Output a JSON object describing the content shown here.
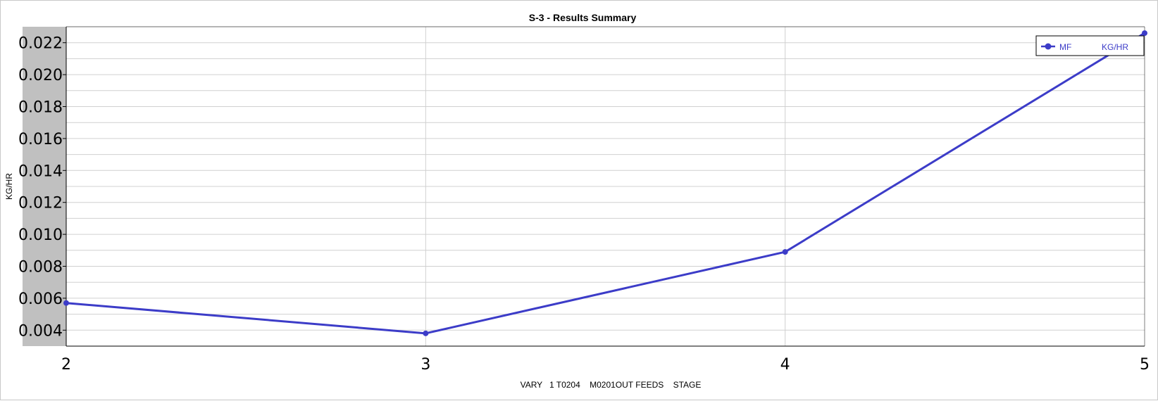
{
  "chart_data": {
    "type": "line",
    "title": "S-3 - Results Summary",
    "xlabel": "VARY   1 T0204    M0201OUT FEEDS    STAGE",
    "ylabel": "KG/HR",
    "x": [
      2,
      3,
      4,
      5
    ],
    "xlim": [
      2,
      5
    ],
    "xticks": [
      2,
      3,
      4,
      5
    ],
    "ylim": [
      0.003,
      0.023
    ],
    "yticks": [
      "0.004",
      "0.006",
      "0.008",
      "0.010",
      "0.012",
      "0.014",
      "0.016",
      "0.018",
      "0.020",
      "0.022"
    ],
    "grid": true,
    "legend_position": "top-right",
    "series": [
      {
        "name": "MF",
        "unit": "KG/HR",
        "color": "#3c3cc8",
        "values": [
          0.0057,
          0.0038,
          0.0089,
          0.0226
        ]
      }
    ]
  }
}
